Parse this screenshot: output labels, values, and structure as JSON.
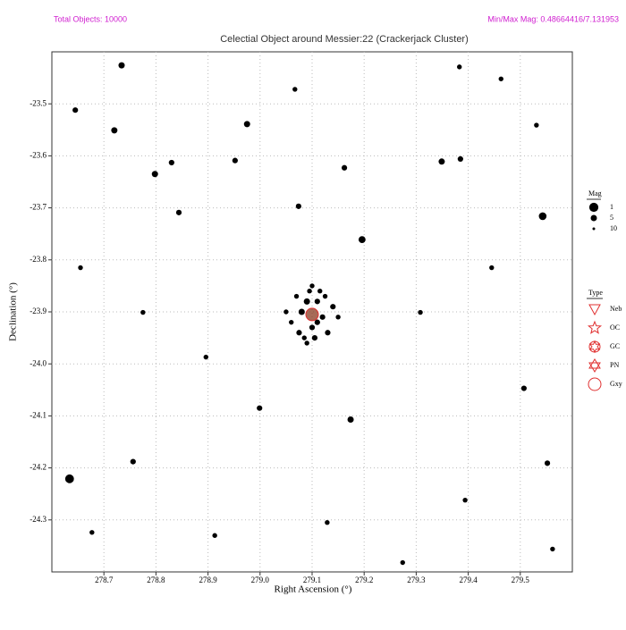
{
  "chart_data": {
    "type": "scatter",
    "header_left": "Total Objects: 10000",
    "header_right": "Min/Max Mag:  0.48664416/7.131953",
    "title": "Celectial Object around Messier:22 (Crackerjack Cluster)",
    "x_label": "Right Ascension (°)",
    "y_label": "Declination (°)",
    "xlim": [
      278.6,
      279.6
    ],
    "ylim": [
      -24.4,
      -23.4
    ],
    "xticks": [
      278.7,
      278.8,
      278.9,
      {
        "value": 279,
        "label": "279.0"
      },
      279.1,
      279.2,
      279.3,
      279.4,
      279.5
    ],
    "yticks": [
      -23.5,
      -23.6,
      -23.7,
      -23.8,
      -23.9,
      {
        "value": -24,
        "label": "-24.0"
      },
      -24.1,
      -24.2,
      -24.3
    ],
    "grid": true,
    "color": "#000000",
    "stars": {
      "x": [
        278.634,
        279.543,
        279.196,
        279.349,
        278.975,
        278.734,
        278.72,
        278.798,
        279.074,
        279.174,
        278.999,
        279.385,
        278.952,
        278.83,
        278.844,
        278.756,
        279.507,
        279.552,
        278.645,
        279.162,
        279.463,
        279.383,
        279.562,
        279.394,
        279.129,
        278.677,
        279.274,
        278.896,
        279.308,
        278.913,
        279.531,
        278.655,
        279.067,
        279.445,
        278.775,
        279.09,
        279.11,
        279.08,
        279.12,
        279.1,
        279.07,
        279.13,
        279.095,
        279.105,
        279.06,
        279.14,
        279.085,
        279.115,
        279.075,
        279.125,
        279.05,
        279.15,
        279.1,
        279.09,
        279.11
      ],
      "y": [
        -24.221,
        -23.716,
        -23.761,
        -23.611,
        -23.539,
        -23.426,
        -23.551,
        -23.635,
        -23.697,
        -24.107,
        -24.085,
        -23.606,
        -23.609,
        -23.613,
        -23.709,
        -24.188,
        -24.047,
        -24.191,
        -23.512,
        -23.623,
        -23.452,
        -23.429,
        -24.356,
        -24.262,
        -24.305,
        -24.324,
        -24.382,
        -23.987,
        -23.901,
        -24.33,
        -23.541,
        -23.815,
        -23.472,
        -23.815,
        -23.901,
        -23.88,
        -23.88,
        -23.9,
        -23.91,
        -23.93,
        -23.87,
        -23.94,
        -23.86,
        -23.95,
        -23.92,
        -23.89,
        -23.95,
        -23.86,
        -23.94,
        -23.87,
        -23.9,
        -23.91,
        -23.85,
        -23.96,
        -23.92
      ],
      "mag": [
        1.5,
        3,
        4,
        5,
        5,
        5,
        5,
        5,
        6,
        5,
        6,
        6,
        6,
        6,
        6,
        6,
        6,
        6,
        6,
        6,
        7,
        7,
        7,
        7,
        7,
        7,
        7,
        7,
        7,
        7,
        7,
        7,
        7,
        7,
        7,
        5,
        6,
        5,
        6,
        6,
        7,
        6,
        7,
        6,
        7,
        6,
        7,
        7,
        6,
        7,
        7,
        7,
        7,
        7,
        6
      ]
    },
    "cluster": {
      "x": 279.1,
      "y": -23.905
    },
    "size_legend": {
      "title": "Mag",
      "values": [
        1,
        5,
        10
      ]
    },
    "type_legend": {
      "title": "Type",
      "labels": [
        "Neb",
        "OC",
        "GC",
        "PN",
        "Gxy"
      ],
      "color": "#e03030"
    }
  }
}
